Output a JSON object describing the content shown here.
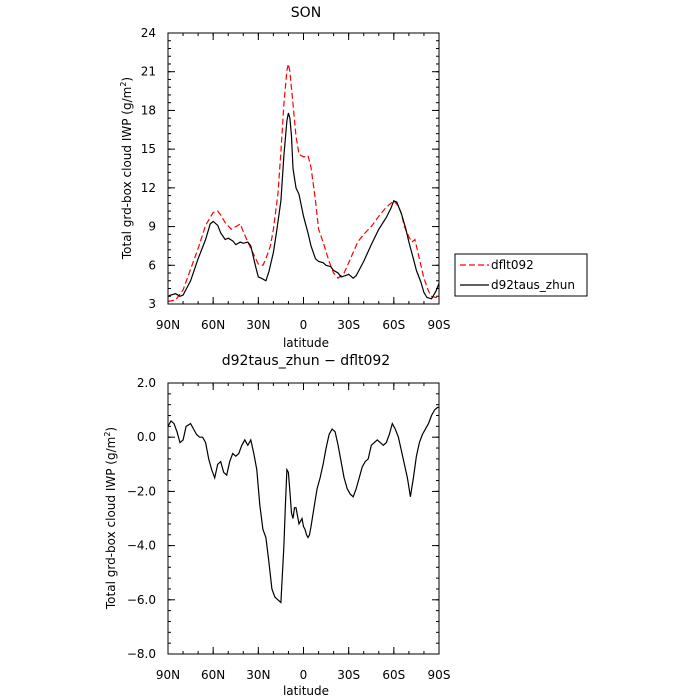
{
  "chart_data": [
    {
      "type": "line",
      "title": "SON",
      "xlabel": "latitude",
      "ylabel_main": "Total grd-box cloud IWP (g/m",
      "ylabel_sup": "2",
      "ylabel_close": ")",
      "xlim": [
        -90,
        90
      ],
      "ylim": [
        3,
        24
      ],
      "x_ticks": [
        -90,
        -60,
        -30,
        0,
        30,
        60,
        90
      ],
      "x_tick_labels": [
        "90N",
        "60N",
        "30N",
        "0",
        "30S",
        "60S",
        "90S"
      ],
      "y_ticks": [
        3,
        6,
        9,
        12,
        15,
        18,
        21,
        24
      ],
      "y_tick_labels": [
        "3",
        "6",
        "9",
        "12",
        "15",
        "18",
        "21",
        "24"
      ],
      "legend_position": "outside-right",
      "grid": false,
      "series": [
        {
          "name": "dflt092",
          "color": "#ff0000",
          "dash": "dashed",
          "x": [
            -90,
            -85,
            -80,
            -75,
            -70,
            -65,
            -60,
            -57,
            -55,
            -52,
            -48,
            -45,
            -42,
            -40,
            -35,
            -30,
            -27,
            -25,
            -22,
            -20,
            -17,
            -15,
            -13,
            -11,
            -10,
            -9,
            -7,
            -5,
            -3,
            0,
            3,
            5,
            8,
            10,
            13,
            17,
            20,
            23,
            27,
            30,
            33,
            36,
            40,
            45,
            50,
            55,
            60,
            63,
            65,
            67,
            70,
            72,
            74,
            77,
            80,
            83,
            85,
            88,
            90
          ],
          "y": [
            3.2,
            3.3,
            4.1,
            5.7,
            7.3,
            9.1,
            10.1,
            10.2,
            9.9,
            9.3,
            8.8,
            9.0,
            9.2,
            8.6,
            7.3,
            6.1,
            6.0,
            6.5,
            7.5,
            8.8,
            11.5,
            14.8,
            18.5,
            21.1,
            21.6,
            21.0,
            18.5,
            16.0,
            14.6,
            14.4,
            14.5,
            13.6,
            11.0,
            8.8,
            7.8,
            6.3,
            5.4,
            5.0,
            5.4,
            6.2,
            7.0,
            7.8,
            8.4,
            9.0,
            9.8,
            10.5,
            11.0,
            10.6,
            10.0,
            9.0,
            8.2,
            7.8,
            8.0,
            6.5,
            5.0,
            4.0,
            3.6,
            3.5,
            3.5
          ]
        },
        {
          "name": "d92taus_zhun",
          "color": "#000000",
          "dash": "solid",
          "x": [
            -90,
            -88,
            -85,
            -82,
            -80,
            -75,
            -70,
            -65,
            -62,
            -60,
            -57,
            -55,
            -52,
            -50,
            -47,
            -45,
            -42,
            -40,
            -37,
            -35,
            -32,
            -30,
            -28,
            -25,
            -23,
            -20,
            -18,
            -15,
            -13,
            -11,
            -10,
            -9,
            -8,
            -7,
            -5,
            -3,
            0,
            3,
            5,
            8,
            10,
            13,
            15,
            18,
            20,
            23,
            25,
            28,
            30,
            33,
            35,
            40,
            45,
            50,
            55,
            58,
            60,
            62,
            65,
            68,
            70,
            73,
            75,
            78,
            80,
            82,
            85,
            88,
            90
          ],
          "y": [
            3.6,
            3.7,
            3.8,
            3.6,
            3.7,
            4.8,
            6.5,
            8.0,
            9.2,
            9.4,
            9.1,
            8.5,
            8.0,
            8.1,
            7.9,
            7.6,
            7.8,
            7.7,
            7.8,
            7.5,
            6.0,
            5.1,
            5.0,
            4.8,
            5.5,
            7.0,
            8.5,
            11.0,
            14.5,
            17.2,
            17.8,
            17.4,
            16.0,
            13.5,
            12.0,
            11.5,
            9.8,
            8.5,
            7.5,
            6.5,
            6.3,
            6.2,
            6.0,
            5.9,
            5.6,
            5.4,
            5.1,
            5.2,
            5.3,
            5.0,
            5.2,
            6.3,
            7.6,
            8.8,
            9.7,
            10.4,
            11.0,
            10.9,
            10.0,
            8.8,
            7.8,
            6.5,
            5.6,
            4.7,
            3.9,
            3.5,
            3.4,
            4.0,
            4.6
          ]
        }
      ]
    },
    {
      "type": "line",
      "title": "d92taus_zhun − dflt092",
      "xlabel": "latitude",
      "ylabel_main": "Total grd-box cloud IWP (g/m",
      "ylabel_sup": "2",
      "ylabel_close": ")",
      "xlim": [
        -90,
        90
      ],
      "ylim": [
        -8,
        2
      ],
      "x_ticks": [
        -90,
        -60,
        -30,
        0,
        30,
        60,
        90
      ],
      "x_tick_labels": [
        "90N",
        "60N",
        "30N",
        "0",
        "30S",
        "60S",
        "90S"
      ],
      "y_ticks": [
        -8,
        -6,
        -4,
        -2,
        0,
        2
      ],
      "y_tick_labels": [
        "−8.0",
        "−6.0",
        "−4.0",
        "−2.0",
        "0.0",
        "2.0"
      ],
      "grid": false,
      "series": [
        {
          "color": "#000000",
          "dash": "solid",
          "x": [
            -90,
            -88,
            -86,
            -84,
            -82,
            -80,
            -78,
            -75,
            -73,
            -71,
            -69,
            -67,
            -65,
            -63,
            -61,
            -59,
            -57,
            -55,
            -53,
            -51,
            -49,
            -47,
            -45,
            -43,
            -41,
            -39,
            -37,
            -35,
            -33,
            -31,
            -29,
            -27,
            -25,
            -23,
            -21,
            -19,
            -17,
            -15,
            -13,
            -12,
            -11,
            -10,
            -9,
            -8,
            -7,
            -6,
            -5,
            -4,
            -3,
            -2,
            -1,
            0,
            1,
            2,
            3,
            4,
            5,
            7,
            9,
            11,
            13,
            15,
            17,
            19,
            21,
            23,
            25,
            27,
            29,
            31,
            33,
            35,
            37,
            39,
            41,
            43,
            45,
            47,
            49,
            51,
            53,
            55,
            57,
            59,
            61,
            63,
            65,
            67,
            69,
            71,
            73,
            75,
            77,
            79,
            81,
            83,
            85,
            87,
            89,
            90
          ],
          "y": [
            0.4,
            0.6,
            0.5,
            0.2,
            -0.2,
            -0.1,
            0.4,
            0.5,
            0.3,
            0.1,
            0.0,
            0.0,
            -0.2,
            -0.8,
            -1.2,
            -1.5,
            -1.0,
            -0.9,
            -1.3,
            -1.4,
            -0.9,
            -0.6,
            -0.7,
            -0.6,
            -0.3,
            -0.1,
            -0.3,
            -0.1,
            -0.6,
            -1.2,
            -2.5,
            -3.4,
            -3.7,
            -4.6,
            -5.6,
            -5.9,
            -6.0,
            -6.1,
            -4.0,
            -2.5,
            -1.2,
            -1.3,
            -2.0,
            -2.8,
            -3.0,
            -2.6,
            -2.6,
            -2.9,
            -3.2,
            -3.1,
            -3.0,
            -3.3,
            -3.4,
            -3.6,
            -3.7,
            -3.6,
            -3.3,
            -2.6,
            -1.9,
            -1.5,
            -1.0,
            -0.4,
            0.1,
            0.3,
            0.2,
            -0.3,
            -0.9,
            -1.5,
            -1.9,
            -2.1,
            -2.2,
            -1.9,
            -1.5,
            -1.1,
            -0.9,
            -0.8,
            -0.3,
            -0.2,
            -0.1,
            -0.2,
            -0.3,
            -0.2,
            0.1,
            0.5,
            0.3,
            0.0,
            -0.5,
            -1.0,
            -1.5,
            -2.2,
            -1.5,
            -0.7,
            -0.2,
            0.1,
            0.3,
            0.5,
            0.8,
            1.0,
            1.1,
            1.1
          ]
        }
      ]
    }
  ]
}
